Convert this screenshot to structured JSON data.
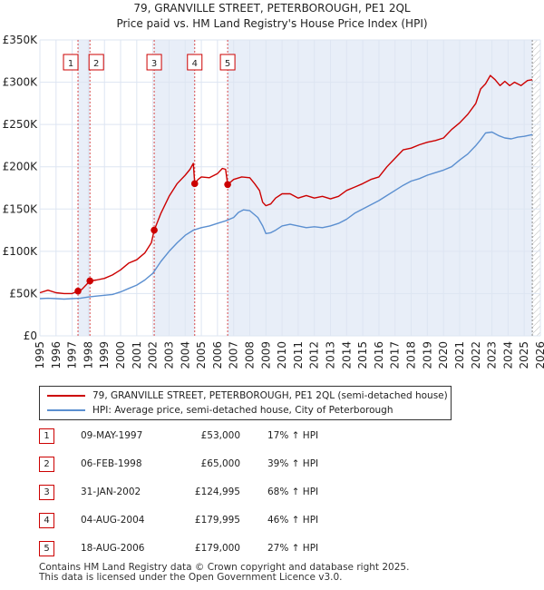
{
  "header": {
    "title": "79, GRANVILLE STREET, PETERBOROUGH, PE1 2QL",
    "subtitle": "Price paid vs. HM Land Registry's House Price Index (HPI)"
  },
  "colors": {
    "property": "#cc0000",
    "hpi": "#5b8fd0",
    "band": "#e8eef8",
    "grid": "#dde5f2",
    "sale_box": "#cc0000"
  },
  "chart_data": {
    "type": "line",
    "title": "79, GRANVILLE STREET, PETERBOROUGH, PE1 2QL",
    "xlabel": "",
    "ylabel": "",
    "xlim": [
      1995,
      2026
    ],
    "ylim": [
      0,
      350000
    ],
    "yticks": [
      0,
      50000,
      100000,
      150000,
      200000,
      250000,
      300000,
      350000
    ],
    "ytick_labels": [
      "£0",
      "£50K",
      "£100K",
      "£150K",
      "£200K",
      "£250K",
      "£300K",
      "£350K"
    ],
    "xticks": [
      1995,
      1996,
      1997,
      1998,
      1999,
      2000,
      2001,
      2002,
      2003,
      2004,
      2005,
      2006,
      2007,
      2008,
      2009,
      2010,
      2011,
      2012,
      2013,
      2014,
      2015,
      2016,
      2017,
      2018,
      2019,
      2020,
      2021,
      2022,
      2023,
      2024,
      2025,
      2026
    ],
    "xtick_labels": [
      "1995",
      "1996",
      "1997",
      "1998",
      "1999",
      "2000",
      "2001",
      "2002",
      "2003",
      "2004",
      "2005",
      "2006",
      "2007",
      "2008",
      "2009",
      "2010",
      "2011",
      "2012",
      "2013",
      "2014",
      "2015",
      "2016",
      "2017",
      "2018",
      "2019",
      "2020",
      "2021",
      "2022",
      "2023",
      "2024",
      "2025",
      "2026"
    ],
    "shaded_bands": [
      [
        1997.36,
        1998.1
      ],
      [
        2002.08,
        2004.59
      ],
      [
        2006.63,
        2025.5
      ]
    ],
    "hatch_from": 2025.5,
    "series": [
      {
        "name": "79, GRANVILLE STREET, PETERBOROUGH, PE1 2QL (semi-detached house)",
        "color": "#cc0000",
        "x": [
          1995,
          1995.5,
          1996,
          1996.5,
          1997,
          1997.36,
          1997.6,
          1998.1,
          1998.5,
          1999,
          1999.5,
          2000,
          2000.5,
          2001,
          2001.5,
          2001.9,
          2002.08,
          2002.5,
          2003,
          2003.5,
          2004,
          2004.3,
          2004.5,
          2004.59,
          2004.8,
          2005,
          2005.5,
          2006,
          2006.3,
          2006.5,
          2006.63,
          2007,
          2007.5,
          2008,
          2008.3,
          2008.6,
          2008.8,
          2009,
          2009.3,
          2009.6,
          2010,
          2010.5,
          2011,
          2011.5,
          2012,
          2012.5,
          2013,
          2013.5,
          2014,
          2014.5,
          2015,
          2015.5,
          2016,
          2016.5,
          2017,
          2017.5,
          2018,
          2018.5,
          2019,
          2019.5,
          2020,
          2020.5,
          2021,
          2021.5,
          2022,
          2022.3,
          2022.6,
          2022.9,
          2023.2,
          2023.5,
          2023.8,
          2024.1,
          2024.4,
          2024.8,
          2025.2,
          2025.5
        ],
        "values": [
          51000,
          54000,
          51000,
          50000,
          50000,
          53000,
          55000,
          65000,
          66000,
          68000,
          72000,
          78000,
          86000,
          90000,
          98000,
          110000,
          124995,
          145000,
          165000,
          180000,
          190000,
          197000,
          204000,
          179995,
          185000,
          188000,
          187000,
          192000,
          198000,
          197000,
          179000,
          185000,
          188000,
          187000,
          180000,
          172000,
          158000,
          154000,
          156000,
          163000,
          168000,
          168000,
          163000,
          166000,
          163000,
          165000,
          162000,
          165000,
          172000,
          176000,
          180000,
          185000,
          188000,
          200000,
          210000,
          220000,
          222000,
          226000,
          229000,
          231000,
          234000,
          244000,
          252000,
          262000,
          275000,
          292000,
          298000,
          308000,
          303000,
          296000,
          301000,
          296000,
          300000,
          296000,
          302000,
          303000
        ]
      },
      {
        "name": "HPI: Average price, semi-detached house, City of Peterborough",
        "color": "#5b8fd0",
        "x": [
          1995,
          1995.5,
          1996,
          1996.5,
          1997,
          1997.5,
          1998,
          1998.5,
          1999,
          1999.5,
          2000,
          2000.5,
          2001,
          2001.5,
          2002,
          2002.5,
          2003,
          2003.5,
          2004,
          2004.5,
          2005,
          2005.5,
          2006,
          2006.5,
          2007,
          2007.3,
          2007.6,
          2008,
          2008.5,
          2008.8,
          2009,
          2009.3,
          2009.6,
          2010,
          2010.5,
          2011,
          2011.5,
          2012,
          2012.5,
          2013,
          2013.5,
          2014,
          2014.5,
          2015,
          2015.5,
          2016,
          2016.5,
          2017,
          2017.5,
          2018,
          2018.5,
          2019,
          2019.5,
          2020,
          2020.5,
          2021,
          2021.5,
          2022,
          2022.3,
          2022.6,
          2023,
          2023.4,
          2023.8,
          2024.2,
          2024.6,
          2025,
          2025.5
        ],
        "values": [
          44000,
          44500,
          44000,
          43500,
          44000,
          44500,
          46000,
          47000,
          48000,
          49000,
          52000,
          56000,
          60000,
          66000,
          74000,
          88000,
          100000,
          110000,
          119000,
          125000,
          128000,
          130000,
          133000,
          136000,
          140000,
          146000,
          149000,
          148000,
          140000,
          130000,
          121000,
          122000,
          125000,
          130000,
          132000,
          130000,
          128000,
          129000,
          128000,
          130000,
          133000,
          138000,
          145000,
          150000,
          155000,
          160000,
          166000,
          172000,
          178000,
          183000,
          186000,
          190000,
          193000,
          196000,
          200000,
          208000,
          215000,
          225000,
          232000,
          240000,
          241000,
          237000,
          234000,
          233000,
          235000,
          236000,
          238000
        ]
      }
    ],
    "sales": [
      {
        "label": "1",
        "x": 1997.36,
        "y": 53000
      },
      {
        "label": "2",
        "x": 1998.1,
        "y": 65000
      },
      {
        "label": "3",
        "x": 2002.08,
        "y": 124995
      },
      {
        "label": "4",
        "x": 2004.59,
        "y": 179995
      },
      {
        "label": "5",
        "x": 2006.63,
        "y": 179000
      }
    ]
  },
  "legend": {
    "property_label": "79, GRANVILLE STREET, PETERBOROUGH, PE1 2QL (semi-detached house)",
    "hpi_label": "HPI: Average price, semi-detached house, City of Peterborough"
  },
  "sales_table": [
    {
      "num": "1",
      "date": "09-MAY-1997",
      "price": "£53,000",
      "hpi": "17% ↑ HPI"
    },
    {
      "num": "2",
      "date": "06-FEB-1998",
      "price": "£65,000",
      "hpi": "39% ↑ HPI"
    },
    {
      "num": "3",
      "date": "31-JAN-2002",
      "price": "£124,995",
      "hpi": "68% ↑ HPI"
    },
    {
      "num": "4",
      "date": "04-AUG-2004",
      "price": "£179,995",
      "hpi": "46% ↑ HPI"
    },
    {
      "num": "5",
      "date": "18-AUG-2006",
      "price": "£179,000",
      "hpi": "27% ↑ HPI"
    }
  ],
  "footer": {
    "line1": "Contains HM Land Registry data © Crown copyright and database right 2025.",
    "line2": "This data is licensed under the Open Government Licence v3.0."
  }
}
